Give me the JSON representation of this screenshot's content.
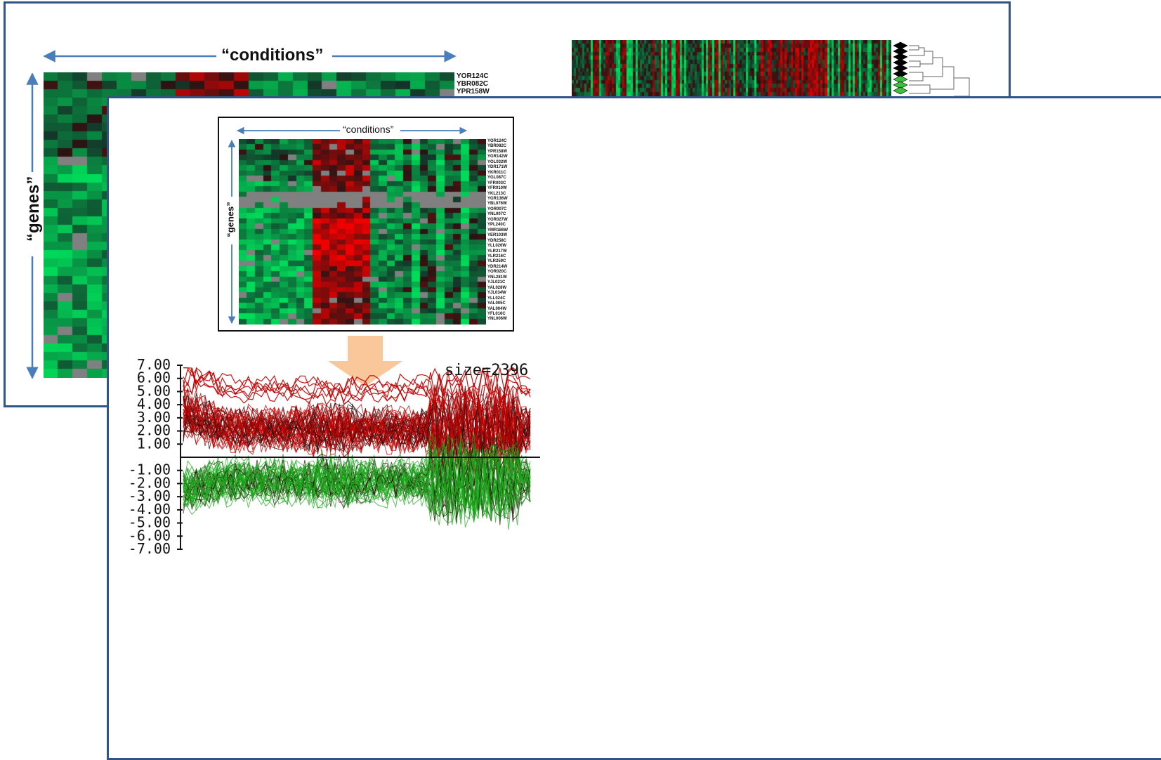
{
  "back_panel": {
    "conditions_label": "“conditions”",
    "genes_label": "“genes”",
    "gene_labels": [
      "YOR124C",
      "YBR082C",
      "YPR158W"
    ],
    "colors": {
      "frame": "#2e5585",
      "arrow": "#4a7ebb"
    }
  },
  "inset": {
    "conditions_label": "“conditions”",
    "genes_label": "“genes”",
    "gene_labels": [
      "YOR124C",
      "YBR082C",
      "YPR158W",
      "YGR142W",
      "YOL032W",
      "YDR171W",
      "YKR011C",
      "YGL087C",
      "YFR003C",
      "YFR010W",
      "YKL213C",
      "YGR136W",
      "YBL076W",
      "YOR007C",
      "YNL007C",
      "YOR027W",
      "YPL240C",
      "YMR186W",
      "YER103W",
      "YDR258C",
      "YLL026W",
      "YLR217W",
      "YLR216C",
      "YLR259C",
      "YDR214W",
      "YOR020C",
      "YNL281W",
      "YJL021C",
      "YAL028W",
      "YJL034W",
      "YLL024C",
      "YAL005C",
      "YAL004W",
      "YFL016C",
      "YNL006W"
    ]
  },
  "arrow_color": "#f9c79a",
  "chart_data": {
    "type": "line",
    "annotation": "size=2396",
    "ylim": [
      -7.0,
      7.0
    ],
    "y_ticks": [
      "7.00",
      "6.00",
      "5.00",
      "4.00",
      "3.00",
      "2.00",
      "1.00",
      "-1.00",
      "-2.00",
      "-3.00",
      "-4.00",
      "-5.00",
      "-6.00",
      "-7.00"
    ],
    "y_tick_values": [
      7,
      6,
      5,
      4,
      3,
      2,
      1,
      -1,
      -2,
      -3,
      -4,
      -5,
      -6,
      -7
    ],
    "series_colors": {
      "up": "#c00000",
      "down": "#1aa81a",
      "dark": "#2a0a0a"
    }
  }
}
